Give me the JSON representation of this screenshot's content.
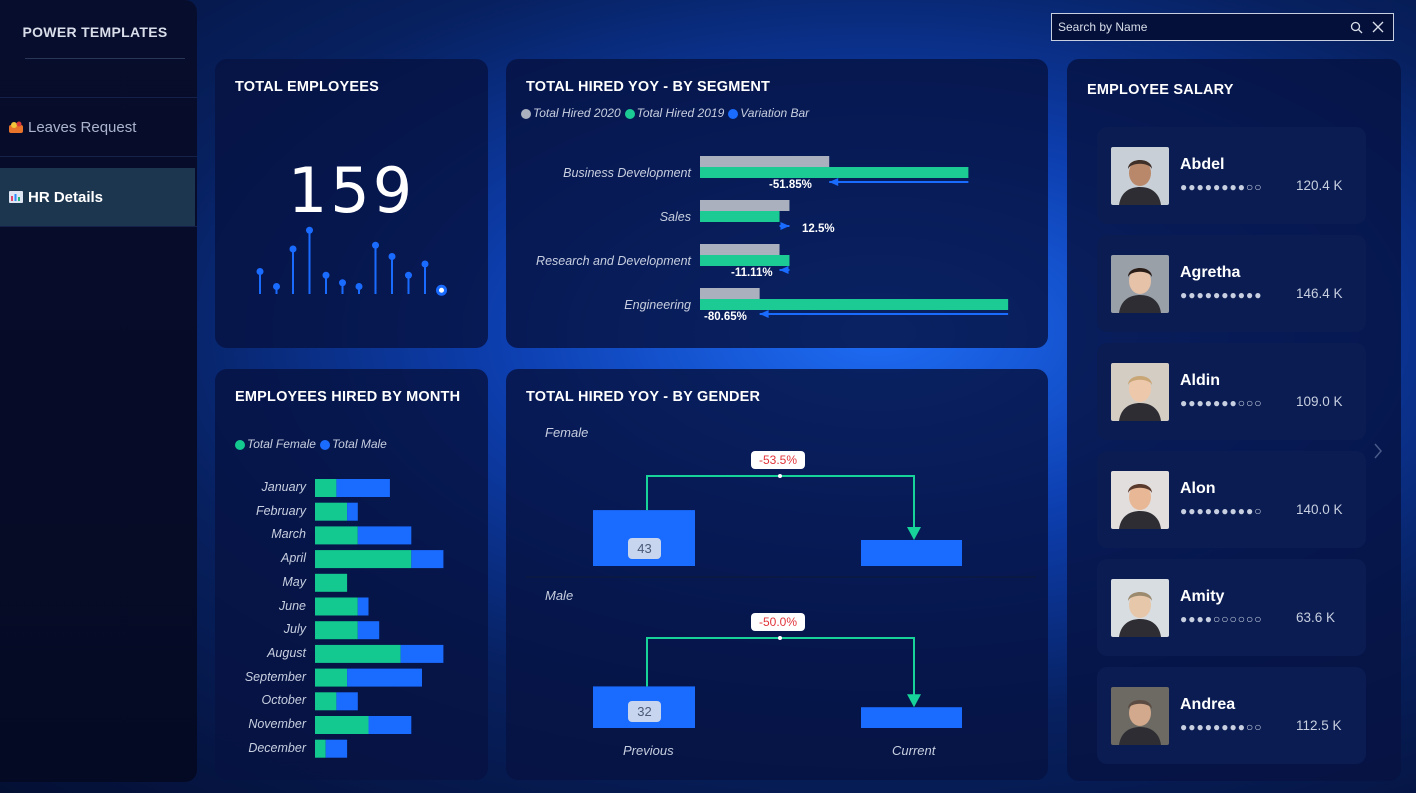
{
  "brand": "POWER TEMPLATES",
  "nav": [
    {
      "label": "Leaves Request",
      "icon": "leaves-icon",
      "active": false
    },
    {
      "label": "HR Details",
      "icon": "chart-icon",
      "active": true
    }
  ],
  "search": {
    "placeholder": "Search by Name"
  },
  "total_employees": {
    "title": "TOTAL EMPLOYEES",
    "value": "159"
  },
  "segment": {
    "title": "TOTAL HIRED YOY - BY SEGMENT",
    "legend": [
      "Total Hired 2020",
      "Total Hired 2019",
      "Variation Bar"
    ],
    "colors": {
      "y2020": "#aab0bd",
      "y2019": "#1ccb94",
      "variation": "#1a6bff"
    },
    "rows": [
      {
        "label": "Business Development",
        "pct": "-51.85%"
      },
      {
        "label": "Sales",
        "pct": "12.5%"
      },
      {
        "label": "Research and Development",
        "pct": "-11.11%"
      },
      {
        "label": "Engineering",
        "pct": "-80.65%"
      }
    ]
  },
  "months": {
    "title": "EMPLOYEES HIRED BY MONTH",
    "legend": [
      "Total Female",
      "Total Male"
    ],
    "colors": {
      "female": "#14c990",
      "male": "#1a6bff"
    }
  },
  "gender": {
    "title": "TOTAL HIRED YOY - BY GENDER",
    "female": {
      "label": "Female",
      "variation": "-53.5%",
      "previous": "43"
    },
    "male": {
      "label": "Male",
      "variation": "-50.0%",
      "previous": "32"
    },
    "x_labels": [
      "Previous",
      "Current"
    ]
  },
  "salary": {
    "title": "EMPLOYEE SALARY",
    "employees": [
      {
        "name": "Abdel",
        "rating": 8,
        "salary": "120.4 K"
      },
      {
        "name": "Agretha",
        "rating": 10,
        "salary": "146.4 K"
      },
      {
        "name": "Aldin",
        "rating": 7,
        "salary": "109.0 K"
      },
      {
        "name": "Alon",
        "rating": 9,
        "salary": "140.0 K"
      },
      {
        "name": "Amity",
        "rating": 4,
        "salary": "63.6 K"
      },
      {
        "name": "Andrea",
        "rating": 8,
        "salary": "112.5 K"
      }
    ]
  },
  "chart_data": [
    {
      "type": "bar",
      "name": "lollipop",
      "values": [
        3,
        1,
        6,
        8.5,
        2.5,
        1.5,
        1,
        6.5,
        5,
        2.5,
        4,
        0.5
      ]
    },
    {
      "type": "bar",
      "title": "TOTAL HIRED YOY - BY SEGMENT",
      "categories": [
        "Business Development",
        "Sales",
        "Research and Development",
        "Engineering"
      ],
      "series": [
        {
          "name": "Total Hired 2020",
          "values": [
            26,
            18,
            16,
            12
          ]
        },
        {
          "name": "Total Hired 2019",
          "values": [
            54,
            16,
            18,
            62
          ]
        }
      ],
      "variation": [
        "-51.85%",
        "12.5%",
        "-11.11%",
        "-80.65%"
      ]
    },
    {
      "type": "bar",
      "title": "EMPLOYEES HIRED BY MONTH",
      "categories": [
        "January",
        "February",
        "March",
        "April",
        "May",
        "June",
        "July",
        "August",
        "September",
        "October",
        "November",
        "December"
      ],
      "series": [
        {
          "name": "Total Female",
          "values": [
            2,
            3,
            4,
            9,
            3,
            4,
            4,
            8,
            3,
            2,
            5,
            1
          ]
        },
        {
          "name": "Total Male",
          "values": [
            5,
            1,
            5,
            3,
            0,
            1,
            2,
            4,
            7,
            2,
            4,
            2
          ]
        }
      ]
    },
    {
      "type": "bar",
      "title": "TOTAL HIRED YOY - BY GENDER",
      "categories": [
        "Previous",
        "Current"
      ],
      "series": [
        {
          "name": "Female",
          "values": [
            43,
            20
          ]
        },
        {
          "name": "Male",
          "values": [
            32,
            16
          ]
        }
      ]
    }
  ]
}
